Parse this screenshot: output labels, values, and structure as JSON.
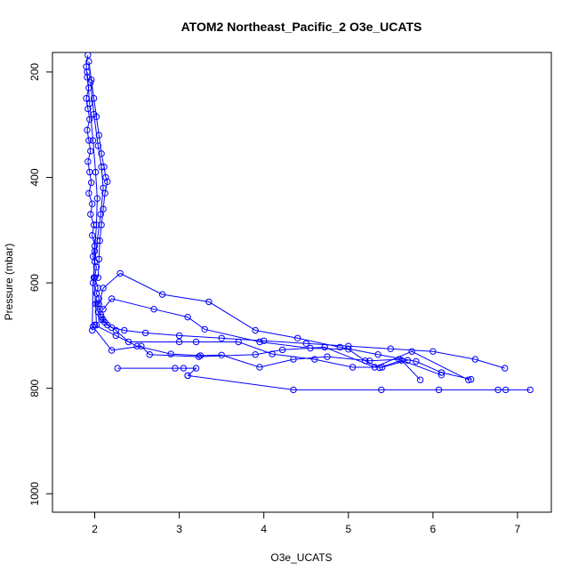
{
  "chart_data": {
    "type": "line",
    "title": "ATOM2 Northeast_Pacific_2 O3e_UCATS",
    "xlabel": "O3e_UCATS",
    "ylabel": "Pressure (mbar)",
    "xlim": [
      1.5,
      7.4
    ],
    "ylim": [
      1035,
      163
    ],
    "y_reversed": true,
    "x_ticks": [
      2,
      3,
      4,
      5,
      6,
      7
    ],
    "x_tick_labels": [
      "2",
      "3",
      "4",
      "5",
      "6",
      "7"
    ],
    "y_ticks": [
      200,
      400,
      600,
      800,
      1000
    ],
    "y_tick_labels": [
      "200",
      "400",
      "600",
      "800",
      "1000"
    ],
    "grid": false,
    "marker": "open-circle",
    "series_color": "#0000ff",
    "series": [
      {
        "x": [
          1.92,
          1.9,
          1.91,
          1.93,
          1.9,
          1.92,
          1.94,
          1.91,
          1.93,
          1.95,
          1.92,
          1.94,
          1.96,
          1.93,
          1.97,
          1.95,
          1.99,
          1.97,
          2.0,
          1.98,
          2.02,
          2.0,
          2.04,
          2.02,
          2.05,
          2.03,
          2.06,
          2.04,
          2.07,
          2.08,
          2.1,
          2.12,
          2.15,
          2.2,
          2.35,
          2.6,
          3.0,
          3.5,
          4.0,
          4.5,
          5.0,
          5.5,
          6.0,
          6.5,
          6.85
        ],
        "y": [
          168,
          190,
          210,
          230,
          250,
          270,
          290,
          310,
          330,
          350,
          370,
          390,
          410,
          430,
          450,
          470,
          490,
          510,
          530,
          550,
          570,
          590,
          610,
          620,
          630,
          640,
          650,
          655,
          660,
          665,
          670,
          675,
          680,
          685,
          690,
          695,
          700,
          705,
          710,
          715,
          720,
          725,
          730,
          745,
          762
        ]
      },
      {
        "x": [
          1.93,
          1.96,
          1.99,
          2.02,
          2.05,
          2.08,
          2.11,
          2.13,
          2.15,
          2.12,
          2.1,
          2.08,
          2.06,
          2.05,
          2.04
        ],
        "y": [
          180,
          215,
          250,
          285,
          320,
          355,
          380,
          400,
          408,
          430,
          460,
          490,
          520,
          555,
          590
        ]
      },
      {
        "x": [
          2.05,
          2.1,
          2.3,
          2.8,
          3.35,
          3.9,
          4.4,
          4.9,
          5.35,
          5.8,
          6.1,
          6.45
        ],
        "y": [
          640,
          610,
          582,
          622,
          636,
          690,
          705,
          722,
          736,
          749,
          770,
          783
        ]
      },
      {
        "x": [
          2.1,
          2.2,
          2.7,
          3.1,
          3.3,
          3.95,
          4.55,
          5.0,
          5.2,
          5.37,
          5.63,
          5.85
        ],
        "y": [
          650,
          630,
          650,
          665,
          688,
          712,
          724,
          726,
          748,
          761,
          747,
          784
        ]
      },
      {
        "x": [
          2.08,
          2.25,
          2.4,
          3.0,
          3.2,
          3.7,
          4.1,
          4.6,
          5.05,
          5.4,
          5.7
        ],
        "y": [
          670,
          690,
          712,
          712,
          712,
          712,
          735,
          745,
          760,
          760,
          747
        ]
      },
      {
        "x": [
          2.0,
          2.25,
          2.5,
          2.9,
          3.25,
          3.5,
          3.95,
          4.35,
          4.75,
          5.25,
          5.6,
          6.1
        ],
        "y": [
          680,
          700,
          720,
          735,
          738,
          737,
          760,
          745,
          740,
          748,
          745,
          775
        ]
      },
      {
        "x": [
          1.98,
          2.2,
          2.55,
          2.65,
          3.23,
          3.9,
          4.22,
          4.72,
          5.31,
          5.75,
          6.42
        ],
        "y": [
          683,
          728,
          720,
          736,
          740,
          736,
          727,
          722,
          760,
          730,
          784
        ]
      },
      {
        "x": [
          2.27,
          2.95,
          3.05,
          3.2,
          3.1
        ],
        "y": [
          762,
          762,
          762,
          762,
          776
        ]
      },
      {
        "x": [
          3.1,
          4.35,
          5.39,
          6.07,
          6.77,
          6.86,
          7.15
        ],
        "y": [
          776,
          803,
          803,
          803,
          803,
          803,
          803
        ]
      },
      {
        "x": [
          1.91,
          1.94,
          1.98,
          2.01,
          2.03,
          2.02,
          2.0,
          1.99,
          2.01,
          2.02
        ],
        "y": [
          200,
          260,
          330,
          390,
          440,
          490,
          540,
          590,
          640,
          680
        ]
      },
      {
        "x": [
          1.95,
          1.99,
          2.04,
          2.08,
          2.1,
          2.07,
          2.03,
          2.0,
          1.98,
          1.97
        ],
        "y": [
          220,
          280,
          340,
          380,
          420,
          470,
          520,
          560,
          600,
          690
        ]
      }
    ]
  }
}
